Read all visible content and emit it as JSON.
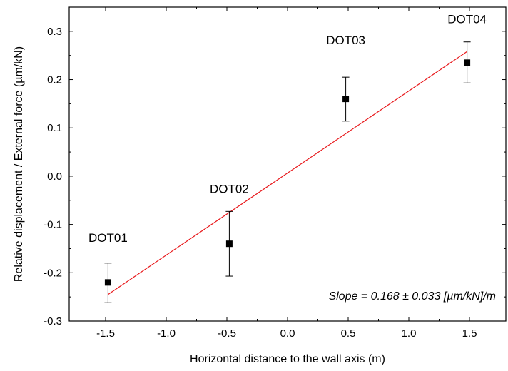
{
  "chart_data": {
    "type": "scatter",
    "xlabel": "Horizontal distance to the wall axis (m)",
    "ylabel": "Relative displacement / External force (µm/kN)",
    "xlim": [
      -1.8,
      1.8
    ],
    "ylim": [
      -0.3,
      0.35
    ],
    "x_ticks": [
      -1.5,
      -1.0,
      -0.5,
      0.0,
      0.5,
      1.0,
      1.5
    ],
    "x_tick_labels": [
      "-1.5",
      "-1.0",
      "-0.5",
      "0.0",
      "0.5",
      "1.0",
      "1.5"
    ],
    "y_ticks": [
      -0.3,
      -0.2,
      -0.1,
      0.0,
      0.1,
      0.2,
      0.3
    ],
    "y_tick_labels": [
      "-0.3",
      "-0.2",
      "-0.1",
      "0.0",
      "0.1",
      "0.2",
      "0.3"
    ],
    "grid": false,
    "points": [
      {
        "label": "DOT01",
        "x": -1.48,
        "y": -0.22,
        "err_low": -0.262,
        "err_high": -0.18
      },
      {
        "label": "DOT02",
        "x": -0.48,
        "y": -0.14,
        "err_low": -0.207,
        "err_high": -0.073
      },
      {
        "label": "DOT03",
        "x": 0.48,
        "y": 0.16,
        "err_low": 0.114,
        "err_high": 0.205
      },
      {
        "label": "DOT04",
        "x": 1.48,
        "y": 0.235,
        "err_low": 0.193,
        "err_high": 0.278
      }
    ],
    "fit_line": {
      "x": [
        -1.48,
        1.48
      ],
      "y": [
        -0.245,
        0.258
      ],
      "color": "#e8191c"
    },
    "annotation": "Slope = 0.168 ± 0.033 [µm/kN]/m"
  }
}
